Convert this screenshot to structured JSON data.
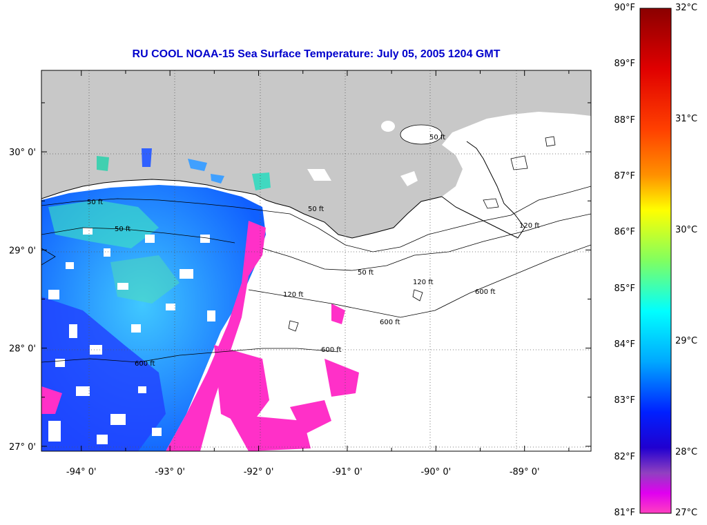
{
  "title": "RU COOL  NOAA-15  Sea Surface Temperature:  July 05, 2005 1204 GMT",
  "map": {
    "lon_range": [
      -94.45,
      -88.25
    ],
    "lat_range": [
      26.95,
      30.83
    ],
    "lon_ticks": [
      {
        "value": -94,
        "label": "-94° 0'"
      },
      {
        "value": -93,
        "label": "-93° 0'"
      },
      {
        "value": -92,
        "label": "-92° 0'"
      },
      {
        "value": -91,
        "label": "-91° 0'"
      },
      {
        "value": -90,
        "label": "-90° 0'"
      },
      {
        "value": -89,
        "label": "-89° 0'"
      }
    ],
    "lat_ticks": [
      {
        "value": 27,
        "label": "27° 0'"
      },
      {
        "value": 28,
        "label": "28° 0'"
      },
      {
        "value": 29,
        "label": "29° 0'"
      },
      {
        "value": 30,
        "label": "30° 0'"
      }
    ],
    "grid": true,
    "land_color": "#c8c8c8",
    "no_data_color": "#ffffff",
    "contour_labels": [
      "50 ft",
      "120 ft",
      "600 ft"
    ]
  },
  "colorbar": {
    "orientation": "vertical",
    "fahrenheit_labels": [
      "90°F",
      "89°F",
      "88°F",
      "87°F",
      "86°F",
      "85°F",
      "84°F",
      "83°F",
      "82°F",
      "81°F"
    ],
    "celsius_labels": [
      "32°C",
      "31°C",
      "30°C",
      "29°C",
      "28°C",
      "27°C"
    ],
    "range_c": [
      27,
      32
    ],
    "colors": [
      "#8b0000",
      "#ff0000",
      "#ff8000",
      "#ffff00",
      "#80ff40",
      "#00ffff",
      "#00a0ff",
      "#0000ff",
      "#8040c0",
      "#ff00ff",
      "#ff40c0"
    ]
  }
}
